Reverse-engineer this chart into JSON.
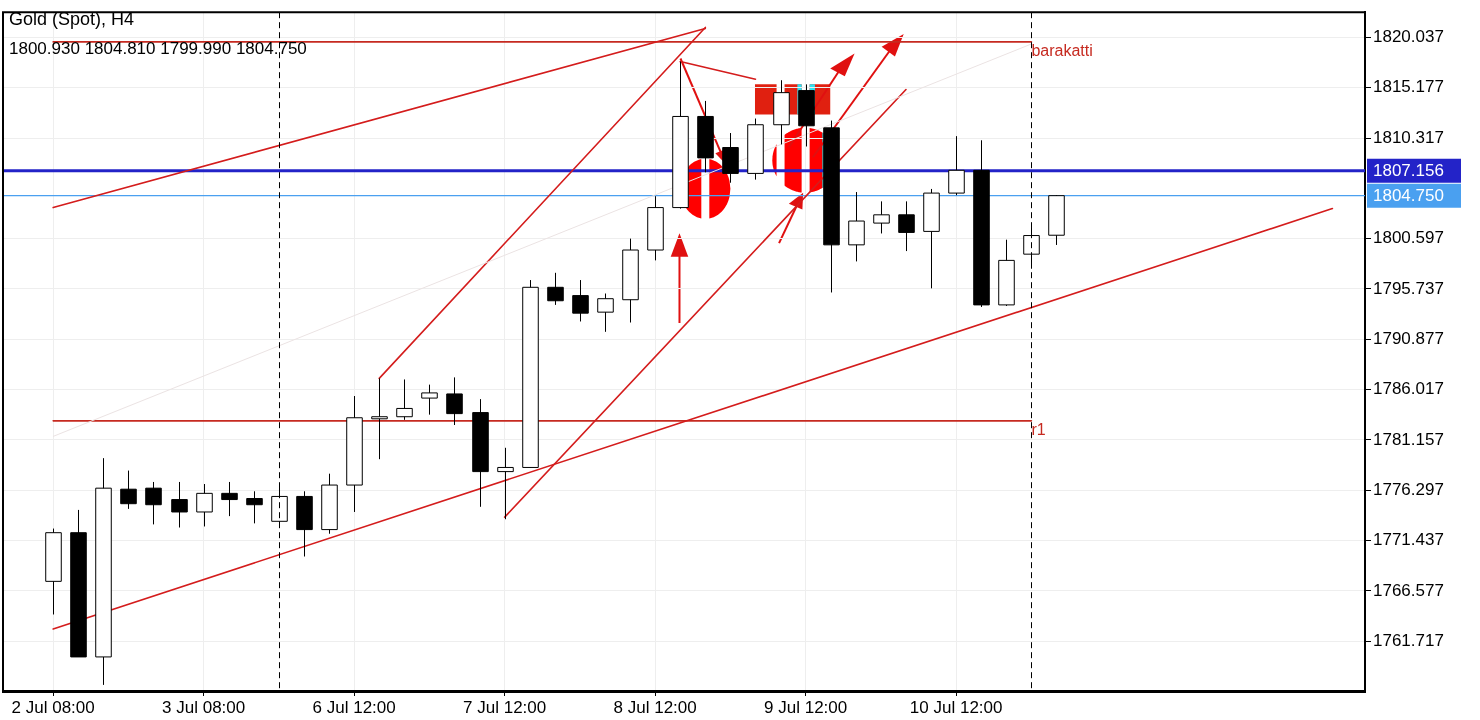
{
  "chart_data": {
    "type": "candlestick",
    "title": "Gold (Spot), H4",
    "subtitle": "1800.930 1804.810 1799.990 1804.750",
    "categories": [
      "2 Jul 08:00",
      null,
      null,
      null,
      null,
      null,
      "3 Jul 08:00",
      null,
      null,
      null,
      null,
      null,
      "6 Jul 12:00",
      null,
      null,
      null,
      null,
      null,
      "7 Jul 12:00",
      null,
      null,
      null,
      null,
      null,
      "8 Jul 12:00",
      null,
      null,
      null,
      null,
      null,
      "9 Jul 12:00",
      null,
      null,
      null,
      null,
      null,
      "10 Jul 12:00",
      null,
      null,
      null,
      null,
      null,
      null,
      null,
      null,
      null,
      null,
      null,
      null,
      null,
      null,
      null,
      null
    ],
    "ohlc": [
      [
        1767.5,
        1772.6,
        1764.3,
        1772.2
      ],
      [
        1772.2,
        1774.4,
        1760.2,
        1760.2
      ],
      [
        1760.2,
        1779.4,
        1757.5,
        1776.5
      ],
      [
        1776.4,
        1778.2,
        1774.5,
        1775.0
      ],
      [
        1776.5,
        1777.1,
        1773.0,
        1774.9
      ],
      [
        1775.4,
        1777.1,
        1772.7,
        1774.2
      ],
      [
        1774.2,
        1776.9,
        1772.8,
        1776.0
      ],
      [
        1776.0,
        1777.1,
        1773.8,
        1775.4
      ],
      [
        1775.5,
        1776.2,
        1773.1,
        1774.9
      ],
      [
        1773.3,
        1776.9,
        1773.1,
        1775.7
      ],
      [
        1775.7,
        1776.2,
        1769.9,
        1772.5
      ],
      [
        1772.5,
        1777.9,
        1772.1,
        1776.8
      ],
      [
        1776.8,
        1785.4,
        1774.2,
        1783.3
      ],
      [
        1783.2,
        1787.1,
        1779.3,
        1783.4
      ],
      [
        1783.4,
        1787.0,
        1783.1,
        1784.2
      ],
      [
        1785.2,
        1786.5,
        1783.6,
        1785.7
      ],
      [
        1785.6,
        1787.2,
        1782.6,
        1783.7
      ],
      [
        1783.8,
        1785.1,
        1774.7,
        1778.1
      ],
      [
        1778.1,
        1780.4,
        1773.5,
        1778.5
      ],
      [
        1778.5,
        1796.6,
        1778.5,
        1795.9
      ],
      [
        1795.9,
        1797.3,
        1794.2,
        1794.6
      ],
      [
        1795.1,
        1796.6,
        1792.6,
        1793.4
      ],
      [
        1793.5,
        1795.3,
        1791.6,
        1794.8
      ],
      [
        1794.7,
        1800.6,
        1792.5,
        1799.5
      ],
      [
        1799.5,
        1804.7,
        1798.5,
        1803.6
      ],
      [
        1803.6,
        1817.7,
        1803.5,
        1812.4
      ],
      [
        1812.4,
        1813.9,
        1807.0,
        1808.4
      ],
      [
        1809.4,
        1810.8,
        1806.0,
        1806.9
      ],
      [
        1806.9,
        1812.2,
        1806.3,
        1811.6
      ],
      [
        1811.6,
        1815.9,
        1809.7,
        1814.7
      ],
      [
        1814.9,
        1815.5,
        1809.5,
        1811.5
      ],
      [
        1811.3,
        1812.0,
        1795.4,
        1800.0
      ],
      [
        1800.0,
        1805.1,
        1798.4,
        1802.3
      ],
      [
        1802.1,
        1804.2,
        1801.1,
        1802.9
      ],
      [
        1802.9,
        1804.2,
        1799.4,
        1801.2
      ],
      [
        1801.3,
        1805.4,
        1795.8,
        1805.0
      ],
      [
        1805.0,
        1810.5,
        1804.8,
        1807.2
      ],
      [
        1807.2,
        1810.1,
        1794.0,
        1794.2
      ],
      [
        1794.2,
        1800.5,
        1794.1,
        1798.5
      ],
      [
        1799.1,
        1801.8,
        1797.7,
        1800.9
      ],
      [
        1800.93,
        1804.81,
        1799.99,
        1804.75
      ],
      null,
      null,
      null,
      null,
      null,
      null,
      null,
      null,
      null,
      null,
      null,
      null
    ],
    "series": [
      {
        "type": "line",
        "color": "#ebe3e3",
        "values": [
          1781.5,
          null,
          null,
          null,
          null,
          null,
          null,
          null,
          null,
          null,
          null,
          null,
          null,
          null,
          null,
          null,
          null,
          null,
          null,
          null,
          null,
          null,
          null,
          null,
          null,
          null,
          null,
          null,
          null,
          null,
          null,
          null,
          null,
          null,
          null,
          null,
          null,
          null,
          null,
          1819.4,
          null,
          null,
          null,
          null,
          null,
          null,
          null,
          null,
          null,
          null,
          null,
          null,
          null
        ]
      },
      {
        "type": "line",
        "color": "#d41c1c",
        "values": [
          1803.6,
          null,
          null,
          null,
          null,
          null,
          null,
          null,
          null,
          null,
          null,
          null,
          null,
          null,
          null,
          null,
          null,
          null,
          null,
          null,
          null,
          null,
          null,
          null,
          null,
          null,
          1820.9,
          null,
          null,
          null,
          null,
          null,
          null,
          null,
          null,
          null,
          null,
          null,
          null,
          null,
          null,
          null,
          null,
          null,
          null,
          null,
          null,
          null,
          null,
          null,
          null,
          null,
          null
        ]
      },
      {
        "type": "line",
        "color": "#d41c1c",
        "values": [
          1762.9,
          null,
          null,
          null,
          null,
          null,
          null,
          null,
          null,
          null,
          null,
          null,
          null,
          null,
          null,
          null,
          null,
          null,
          null,
          null,
          null,
          null,
          null,
          null,
          null,
          null,
          null,
          null,
          null,
          null,
          null,
          null,
          null,
          null,
          null,
          null,
          null,
          null,
          null,
          null,
          null,
          null,
          null,
          null,
          null,
          null,
          null,
          null,
          null,
          null,
          null,
          1803.5,
          null
        ]
      },
      {
        "type": "line",
        "color": "#d41c1c",
        "values": [
          null,
          null,
          null,
          null,
          null,
          null,
          null,
          null,
          null,
          null,
          null,
          null,
          null,
          1787.1,
          null,
          null,
          null,
          null,
          null,
          null,
          null,
          null,
          null,
          null,
          null,
          null,
          1821.0,
          null,
          null,
          null,
          null,
          null,
          null,
          null,
          null,
          null,
          null,
          null,
          null,
          null,
          null,
          null,
          null,
          null,
          null,
          null,
          null,
          null,
          null,
          null,
          null,
          null,
          null
        ]
      },
      {
        "type": "line",
        "color": "#d41c1c",
        "values": [
          null,
          null,
          null,
          null,
          null,
          null,
          null,
          null,
          null,
          null,
          null,
          null,
          null,
          null,
          null,
          null,
          null,
          null,
          1773.7,
          null,
          null,
          null,
          null,
          null,
          null,
          null,
          null,
          null,
          null,
          null,
          null,
          null,
          null,
          null,
          1815.0,
          null,
          null,
          null,
          null,
          null,
          null,
          null,
          null,
          null,
          null,
          null,
          null,
          null,
          null,
          null,
          null,
          null,
          null
        ]
      },
      {
        "type": "line",
        "color": "#d41c1c",
        "values": [
          null,
          null,
          null,
          null,
          null,
          null,
          null,
          null,
          null,
          null,
          null,
          null,
          null,
          null,
          null,
          null,
          null,
          null,
          null,
          null,
          null,
          null,
          null,
          null,
          null,
          1817.7,
          null,
          null,
          1816.0,
          null,
          null,
          null,
          null,
          null,
          null,
          null,
          null,
          null,
          null,
          null,
          null,
          null,
          null,
          null,
          null,
          null,
          null,
          null,
          null,
          null,
          null,
          null,
          null
        ]
      },
      {
        "type": "line",
        "name": "barakatti",
        "color": "#c62a20",
        "values": [
          1819.6,
          null,
          null,
          null,
          null,
          null,
          null,
          null,
          null,
          null,
          null,
          null,
          null,
          null,
          null,
          null,
          null,
          null,
          null,
          null,
          null,
          null,
          null,
          null,
          null,
          null,
          null,
          null,
          null,
          null,
          null,
          null,
          null,
          null,
          null,
          null,
          null,
          null,
          null,
          1819.6,
          null,
          null,
          null,
          null,
          null,
          null,
          null,
          null,
          null,
          null,
          null,
          null,
          null
        ]
      },
      {
        "type": "line",
        "name": "r1",
        "color": "#c62a20",
        "values": [
          1783.0,
          null,
          null,
          null,
          null,
          null,
          null,
          null,
          null,
          null,
          null,
          null,
          null,
          null,
          null,
          null,
          null,
          null,
          null,
          null,
          null,
          null,
          null,
          null,
          null,
          null,
          null,
          null,
          null,
          null,
          null,
          null,
          null,
          null,
          null,
          null,
          null,
          null,
          null,
          1783.0,
          null,
          null,
          null,
          null,
          null,
          null,
          null,
          null,
          null,
          null,
          null,
          null,
          null
        ]
      }
    ],
    "ref_lines": [
      {
        "axis": "y",
        "value": 1807.156,
        "label": "1807.156",
        "color": "#2323c8"
      },
      {
        "axis": "y",
        "value": 1804.75,
        "label": "1804.750",
        "color": "#4aa0f0"
      }
    ],
    "ylim": [
      1756.91,
      1822.47
    ],
    "yticks": [
      {
        "value": 1820.037,
        "label": "1820.037"
      },
      {
        "value": 1815.177,
        "label": "1815.177"
      },
      {
        "value": 1810.317,
        "label": "1810.317"
      },
      {
        "value": 1800.597,
        "label": "1800.597"
      },
      {
        "value": 1795.737,
        "label": "1795.737"
      },
      {
        "value": 1790.877,
        "label": "1790.877"
      },
      {
        "value": 1786.017,
        "label": "1786.017"
      },
      {
        "value": 1781.157,
        "label": "1781.157"
      },
      {
        "value": 1776.297,
        "label": "1776.297"
      },
      {
        "value": 1771.437,
        "label": "1771.437"
      },
      {
        "value": 1766.577,
        "label": "1766.577"
      },
      {
        "value": 1761.717,
        "label": "1761.717"
      }
    ],
    "grid": true,
    "legend": false
  }
}
